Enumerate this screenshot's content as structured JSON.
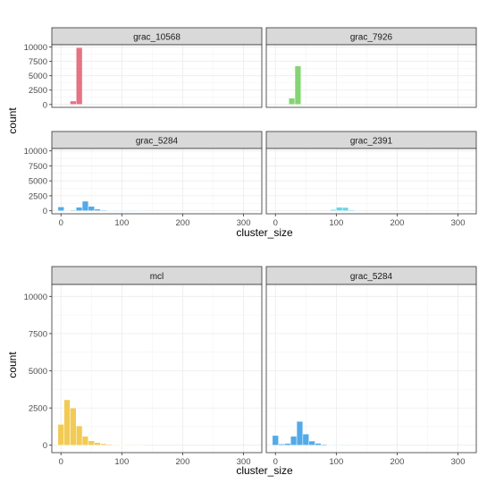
{
  "chart_data": [
    {
      "type": "bar",
      "facets": [
        {
          "title": "grac_10568",
          "color": "#E36C7E",
          "bins": [
            {
              "x": 20,
              "count": 600
            },
            {
              "x": 30,
              "count": 9900
            }
          ]
        },
        {
          "title": "grac_7926",
          "color": "#7ED36B",
          "bins": [
            {
              "x": 27,
              "count": 1100
            },
            {
              "x": 37,
              "count": 6700
            }
          ]
        },
        {
          "title": "grac_5284",
          "color": "#4AA6E8",
          "bins": [
            {
              "x": 0,
              "count": 650
            },
            {
              "x": 10,
              "count": 80
            },
            {
              "x": 20,
              "count": 120
            },
            {
              "x": 30,
              "count": 600
            },
            {
              "x": 40,
              "count": 1600
            },
            {
              "x": 50,
              "count": 750
            },
            {
              "x": 60,
              "count": 280
            },
            {
              "x": 70,
              "count": 130
            },
            {
              "x": 80,
              "count": 60
            },
            {
              "x": 90,
              "count": 30
            },
            {
              "x": 100,
              "count": 20
            },
            {
              "x": 110,
              "count": 12
            },
            {
              "x": 120,
              "count": 8
            },
            {
              "x": 130,
              "count": 5
            }
          ]
        },
        {
          "title": "grac_2391",
          "color": "#62D3E8",
          "bins": [
            {
              "x": 95,
              "count": 200
            },
            {
              "x": 105,
              "count": 600
            },
            {
              "x": 115,
              "count": 550
            },
            {
              "x": 125,
              "count": 150
            },
            {
              "x": 135,
              "count": 40
            }
          ]
        }
      ],
      "xlabel": "cluster_size",
      "ylabel": "count",
      "xticks": [
        0,
        100,
        200,
        300
      ],
      "yticks": [
        0,
        2500,
        5000,
        7500,
        10000
      ],
      "xlim": [
        -15,
        330
      ],
      "ylim": [
        -500,
        10400
      ]
    },
    {
      "type": "bar",
      "facets": [
        {
          "title": "mcl",
          "color": "#F2C94C",
          "bins": [
            {
              "x": 0,
              "count": 1400
            },
            {
              "x": 10,
              "count": 3050
            },
            {
              "x": 20,
              "count": 2500
            },
            {
              "x": 30,
              "count": 1300
            },
            {
              "x": 40,
              "count": 600
            },
            {
              "x": 50,
              "count": 300
            },
            {
              "x": 60,
              "count": 180
            },
            {
              "x": 70,
              "count": 100
            },
            {
              "x": 80,
              "count": 60
            },
            {
              "x": 90,
              "count": 35
            },
            {
              "x": 100,
              "count": 20
            },
            {
              "x": 110,
              "count": 12
            },
            {
              "x": 120,
              "count": 8
            },
            {
              "x": 130,
              "count": 5
            }
          ]
        },
        {
          "title": "grac_5284",
          "color": "#4AA6E8",
          "bins": [
            {
              "x": 0,
              "count": 650
            },
            {
              "x": 10,
              "count": 80
            },
            {
              "x": 20,
              "count": 120
            },
            {
              "x": 30,
              "count": 600
            },
            {
              "x": 40,
              "count": 1600
            },
            {
              "x": 50,
              "count": 750
            },
            {
              "x": 60,
              "count": 280
            },
            {
              "x": 70,
              "count": 130
            },
            {
              "x": 80,
              "count": 60
            },
            {
              "x": 90,
              "count": 30
            },
            {
              "x": 100,
              "count": 20
            },
            {
              "x": 110,
              "count": 12
            },
            {
              "x": 120,
              "count": 8
            },
            {
              "x": 130,
              "count": 5
            }
          ]
        }
      ],
      "xlabel": "cluster_size",
      "ylabel": "count",
      "xticks": [
        0,
        100,
        200,
        300
      ],
      "yticks": [
        0,
        2500,
        5000,
        7500,
        10000
      ],
      "xlim": [
        -15,
        330
      ],
      "ylim": [
        -500,
        10800
      ]
    }
  ]
}
